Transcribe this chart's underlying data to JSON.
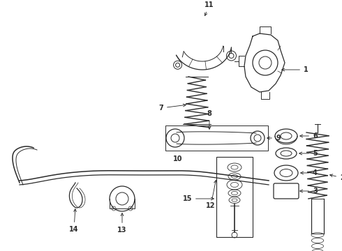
{
  "background_color": "#ffffff",
  "line_color": "#2a2a2a",
  "label_color": "#000000",
  "figsize": [
    4.9,
    3.6
  ],
  "dpi": 100,
  "font_size": 7,
  "arrow_color": "#222222"
}
